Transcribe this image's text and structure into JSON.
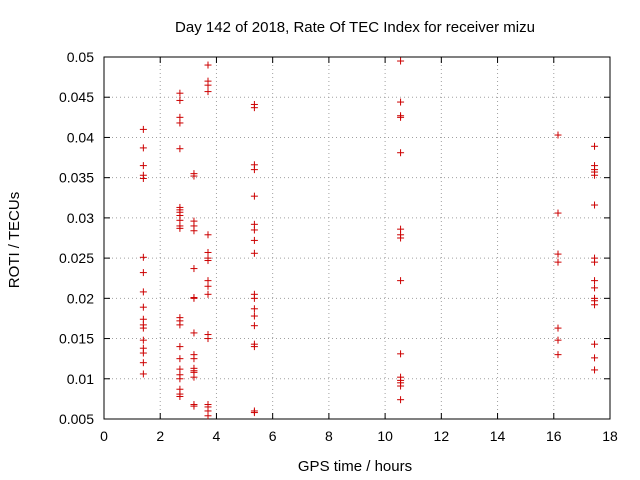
{
  "chart_data": {
    "type": "scatter",
    "title": "Day 142 of 2018, Rate Of TEC Index for receiver mizu",
    "xlabel": "GPS time / hours",
    "ylabel": "ROTI / TECUs",
    "xlim": [
      0,
      18
    ],
    "ylim": [
      0.005,
      0.05
    ],
    "grid": true,
    "marker": "+",
    "marker_color": "#cc0000",
    "x_ticks": [
      "0",
      "2",
      "4",
      "6",
      "8",
      "10",
      "12",
      "14",
      "16",
      "18"
    ],
    "y_ticks": [
      "0.005",
      "0.01",
      "0.015",
      "0.02",
      "0.025",
      "0.03",
      "0.035",
      "0.04",
      "0.045",
      "0.05"
    ],
    "x_tick_values": [
      0,
      2,
      4,
      6,
      8,
      10,
      12,
      14,
      16,
      18
    ],
    "y_tick_values": [
      0.005,
      0.01,
      0.015,
      0.02,
      0.025,
      0.03,
      0.035,
      0.04,
      0.045,
      0.05
    ],
    "series": [
      {
        "name": "ROTI",
        "points": [
          [
            1.4,
            0.041
          ],
          [
            1.4,
            0.0387
          ],
          [
            1.4,
            0.0365
          ],
          [
            1.4,
            0.0353
          ],
          [
            1.4,
            0.0349
          ],
          [
            1.4,
            0.0251
          ],
          [
            1.4,
            0.0232
          ],
          [
            1.4,
            0.0208
          ],
          [
            1.4,
            0.0189
          ],
          [
            1.4,
            0.0174
          ],
          [
            1.4,
            0.0167
          ],
          [
            1.4,
            0.0163
          ],
          [
            1.4,
            0.0148
          ],
          [
            1.4,
            0.0138
          ],
          [
            1.4,
            0.0132
          ],
          [
            1.4,
            0.012
          ],
          [
            1.4,
            0.0106
          ],
          [
            2.7,
            0.0455
          ],
          [
            2.7,
            0.0446
          ],
          [
            2.7,
            0.0425
          ],
          [
            2.7,
            0.0418
          ],
          [
            2.7,
            0.0386
          ],
          [
            2.7,
            0.0313
          ],
          [
            2.7,
            0.031
          ],
          [
            2.7,
            0.0307
          ],
          [
            2.7,
            0.0303
          ],
          [
            2.7,
            0.0297
          ],
          [
            2.7,
            0.029
          ],
          [
            2.7,
            0.0287
          ],
          [
            2.7,
            0.0176
          ],
          [
            2.7,
            0.0172
          ],
          [
            2.7,
            0.0167
          ],
          [
            2.7,
            0.014
          ],
          [
            2.7,
            0.0125
          ],
          [
            2.7,
            0.0112
          ],
          [
            2.7,
            0.0105
          ],
          [
            2.7,
            0.01
          ],
          [
            2.7,
            0.0087
          ],
          [
            2.7,
            0.0081
          ],
          [
            2.7,
            0.0078
          ],
          [
            3.2,
            0.0355
          ],
          [
            3.2,
            0.0352
          ],
          [
            3.2,
            0.0296
          ],
          [
            3.2,
            0.029
          ],
          [
            3.2,
            0.0284
          ],
          [
            3.2,
            0.0237
          ],
          [
            3.2,
            0.0201
          ],
          [
            3.2,
            0.02
          ],
          [
            3.2,
            0.0157
          ],
          [
            3.2,
            0.013
          ],
          [
            3.2,
            0.0125
          ],
          [
            3.2,
            0.0113
          ],
          [
            3.2,
            0.011
          ],
          [
            3.2,
            0.0108
          ],
          [
            3.2,
            0.0102
          ],
          [
            3.2,
            0.0068
          ],
          [
            3.2,
            0.0066
          ],
          [
            3.7,
            0.049
          ],
          [
            3.7,
            0.047
          ],
          [
            3.7,
            0.0465
          ],
          [
            3.7,
            0.0457
          ],
          [
            3.7,
            0.0279
          ],
          [
            3.7,
            0.0257
          ],
          [
            3.7,
            0.025
          ],
          [
            3.7,
            0.0247
          ],
          [
            3.7,
            0.0222
          ],
          [
            3.7,
            0.0215
          ],
          [
            3.7,
            0.0205
          ],
          [
            3.7,
            0.0155
          ],
          [
            3.7,
            0.015
          ],
          [
            3.7,
            0.0068
          ],
          [
            3.7,
            0.0065
          ],
          [
            3.7,
            0.006
          ],
          [
            3.7,
            0.0054
          ],
          [
            5.35,
            0.0441
          ],
          [
            5.35,
            0.0437
          ],
          [
            5.35,
            0.0366
          ],
          [
            5.35,
            0.036
          ],
          [
            5.35,
            0.0327
          ],
          [
            5.35,
            0.0292
          ],
          [
            5.35,
            0.0285
          ],
          [
            5.35,
            0.0272
          ],
          [
            5.35,
            0.0256
          ],
          [
            5.35,
            0.0205
          ],
          [
            5.35,
            0.02
          ],
          [
            5.35,
            0.0187
          ],
          [
            5.35,
            0.0178
          ],
          [
            5.35,
            0.0166
          ],
          [
            5.35,
            0.0143
          ],
          [
            5.35,
            0.014
          ],
          [
            5.35,
            0.006
          ],
          [
            5.35,
            0.0058
          ],
          [
            10.55,
            0.0495
          ],
          [
            10.55,
            0.0444
          ],
          [
            10.55,
            0.0427
          ],
          [
            10.55,
            0.0425
          ],
          [
            10.55,
            0.0381
          ],
          [
            10.55,
            0.0286
          ],
          [
            10.55,
            0.0279
          ],
          [
            10.55,
            0.0275
          ],
          [
            10.55,
            0.0222
          ],
          [
            10.55,
            0.0131
          ],
          [
            10.55,
            0.0102
          ],
          [
            10.55,
            0.0098
          ],
          [
            10.55,
            0.0095
          ],
          [
            10.55,
            0.0091
          ],
          [
            10.55,
            0.0074
          ],
          [
            16.15,
            0.0403
          ],
          [
            16.15,
            0.0306
          ],
          [
            16.15,
            0.0255
          ],
          [
            16.15,
            0.0245
          ],
          [
            16.15,
            0.0163
          ],
          [
            16.15,
            0.0148
          ],
          [
            16.15,
            0.013
          ],
          [
            17.45,
            0.0389
          ],
          [
            17.45,
            0.0365
          ],
          [
            17.45,
            0.036
          ],
          [
            17.45,
            0.0357
          ],
          [
            17.45,
            0.0353
          ],
          [
            17.45,
            0.0316
          ],
          [
            17.45,
            0.025
          ],
          [
            17.45,
            0.0245
          ],
          [
            17.45,
            0.0222
          ],
          [
            17.45,
            0.0213
          ],
          [
            17.45,
            0.02
          ],
          [
            17.45,
            0.0197
          ],
          [
            17.45,
            0.0192
          ],
          [
            17.45,
            0.0143
          ],
          [
            17.45,
            0.0126
          ],
          [
            17.45,
            0.0111
          ]
        ]
      }
    ]
  }
}
